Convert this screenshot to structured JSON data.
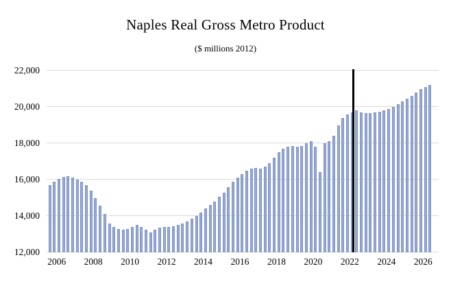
{
  "chart_data": {
    "type": "bar",
    "title": "Naples Real Gross Metro Product",
    "subtitle": "($ millions 2012)",
    "xlabel": "",
    "ylabel": "",
    "x_start": 2005.5,
    "quarterly": true,
    "xlim": [
      2005.45,
      2026.85
    ],
    "ylim": [
      12000,
      22000
    ],
    "grid": true,
    "legend": "none",
    "yticks": [
      {
        "v": 12000,
        "label": "12,000"
      },
      {
        "v": 14000,
        "label": "14,000"
      },
      {
        "v": 16000,
        "label": "16,000"
      },
      {
        "v": 18000,
        "label": "18,000"
      },
      {
        "v": 20000,
        "label": "20,000"
      },
      {
        "v": 22000,
        "label": "22,000"
      }
    ],
    "xticks": [
      {
        "v": 2006,
        "label": "2006"
      },
      {
        "v": 2008,
        "label": "2008"
      },
      {
        "v": 2010,
        "label": "2010"
      },
      {
        "v": 2012,
        "label": "2012"
      },
      {
        "v": 2014,
        "label": "2014"
      },
      {
        "v": 2016,
        "label": "2016"
      },
      {
        "v": 2018,
        "label": "2018"
      },
      {
        "v": 2020,
        "label": "2020"
      },
      {
        "v": 2022,
        "label": "2022"
      },
      {
        "v": 2024,
        "label": "2024"
      },
      {
        "v": 2026,
        "label": "2026"
      }
    ],
    "divider_x": 2022.12,
    "values": [
      15700,
      15900,
      16050,
      16150,
      16200,
      16100,
      16000,
      15900,
      15700,
      15400,
      15000,
      14550,
      14100,
      13600,
      13400,
      13300,
      13250,
      13300,
      13400,
      13500,
      13400,
      13250,
      13100,
      13250,
      13350,
      13400,
      13400,
      13450,
      13500,
      13600,
      13700,
      13850,
      14000,
      14200,
      14400,
      14600,
      14800,
      15050,
      15300,
      15600,
      15900,
      16100,
      16300,
      16500,
      16600,
      16650,
      16600,
      16700,
      16900,
      17200,
      17500,
      17700,
      17800,
      17850,
      17800,
      17850,
      18000,
      18100,
      17800,
      16400,
      18000,
      18100,
      18400,
      19000,
      19400,
      19600,
      19700,
      19800,
      19700,
      19650,
      19650,
      19700,
      19750,
      19800,
      19900,
      20000,
      20150,
      20300,
      20450,
      20600,
      20800,
      21000,
      21100,
      21200
    ],
    "bar_color": "#96aad4",
    "bar_border": "#7d92c0",
    "grid_color": "#d9d9d9",
    "divider_color": "#000000",
    "text_color": "#000000"
  }
}
